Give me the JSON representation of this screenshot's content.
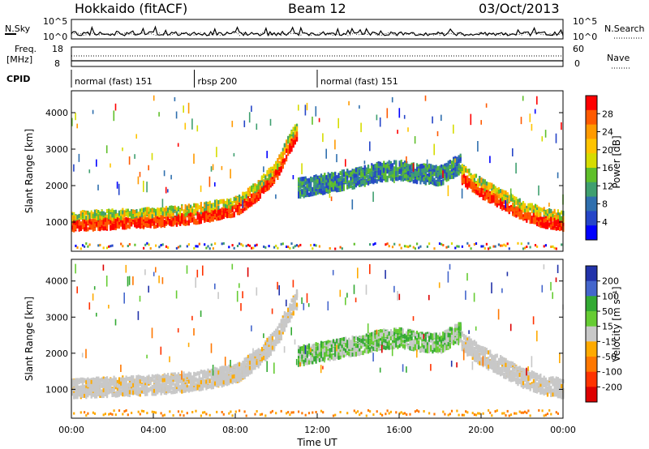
{
  "header": {
    "station": "Hokkaido (fitACF)",
    "beam": "Beam 12",
    "date": "03/Oct/2013"
  },
  "noise_panel": {
    "left_label": "N.Sky",
    "right_label": "N.Search",
    "left_ticks": [
      "10^5",
      "10^0"
    ],
    "right_ticks": [
      "10^5",
      "10^0"
    ]
  },
  "freq_panel": {
    "left_label_1": "Freq.",
    "left_label_2": "[MHz]",
    "right_label": "Nave",
    "left_ticks": [
      "18",
      "8"
    ],
    "right_ticks": [
      "60",
      "0"
    ]
  },
  "cpid": {
    "label": "CPID",
    "segments": [
      {
        "name": "normal (fast) 151",
        "start_hour": 0,
        "end_hour": 6
      },
      {
        "name": "rbsp 200",
        "start_hour": 6,
        "end_hour": 12
      },
      {
        "name": "normal (fast) 151",
        "start_hour": 12,
        "end_hour": 24
      }
    ]
  },
  "power_colorbar": {
    "label": "Power [dB]",
    "ticks": [
      "28",
      "24",
      "20",
      "16",
      "12",
      "8",
      "4"
    ],
    "colors": [
      "#ff0000",
      "#ff5a00",
      "#ff9a00",
      "#ffc400",
      "#d6dc00",
      "#5fbf2a",
      "#3f9f6f",
      "#2f6fae",
      "#2545c8",
      "#0000ff"
    ]
  },
  "velocity_colorbar": {
    "label": "Velocity [m s⁻¹]",
    "ticks": [
      "200",
      "100",
      "50",
      "15",
      "-15",
      "-50",
      "-100",
      "-200"
    ],
    "colors": [
      "#2233aa",
      "#4466cc",
      "#33aa33",
      "#66cc33",
      "#c8c8c8",
      "#ffaa00",
      "#ff7700",
      "#ff3300",
      "#dd0000"
    ]
  },
  "chart_data": [
    {
      "type": "heatmap",
      "panel": "power",
      "ylabel": "Slant Range [km]",
      "x_unit": "hours UT",
      "xlim": [
        0,
        24
      ],
      "ylim": [
        200,
        4600
      ],
      "yticks": [
        "1000",
        "2000",
        "3000",
        "4000"
      ],
      "colorbar_label": "Power [dB]",
      "echo_bands": [
        {
          "x": [
            0,
            2,
            4,
            6,
            8,
            9,
            10,
            10.5,
            11
          ],
          "y": [
            1000,
            1050,
            1100,
            1200,
            1400,
            1800,
            2400,
            3000,
            3500
          ],
          "level": "high"
        },
        {
          "x": [
            11,
            12,
            14,
            15,
            16,
            17,
            18,
            19
          ],
          "y": [
            1900,
            2000,
            2200,
            2350,
            2400,
            2300,
            2250,
            2600
          ],
          "level": "medium"
        },
        {
          "x": [
            19,
            20,
            21,
            22,
            23,
            24
          ],
          "y": [
            2300,
            1900,
            1600,
            1300,
            1100,
            1000
          ],
          "level": "high"
        }
      ]
    },
    {
      "type": "heatmap",
      "panel": "velocity",
      "ylabel": "Slant Range [km]",
      "xlabel": "Time UT",
      "x_unit": "hours UT",
      "xlim": [
        0,
        24
      ],
      "ylim": [
        200,
        4600
      ],
      "yticks": [
        "1000",
        "2000",
        "3000",
        "4000"
      ],
      "xticks": [
        "00:00",
        "04:00",
        "08:00",
        "12:00",
        "16:00",
        "20:00",
        "00:00"
      ],
      "colorbar_label": "Velocity [m s⁻¹]",
      "echo_bands": [
        {
          "x": [
            0,
            2,
            4,
            6,
            8,
            9,
            10,
            10.5,
            11
          ],
          "y": [
            1000,
            1050,
            1100,
            1200,
            1400,
            1800,
            2400,
            3000,
            3500
          ],
          "level": "ground"
        },
        {
          "x": [
            11,
            12,
            14,
            15,
            16,
            17,
            18,
            19
          ],
          "y": [
            1900,
            2000,
            2200,
            2350,
            2400,
            2300,
            2250,
            2600
          ],
          "level": "mixed"
        },
        {
          "x": [
            19,
            20,
            21,
            22,
            23,
            24
          ],
          "y": [
            2300,
            1900,
            1600,
            1300,
            1100,
            1000
          ],
          "level": "ground"
        }
      ]
    }
  ]
}
